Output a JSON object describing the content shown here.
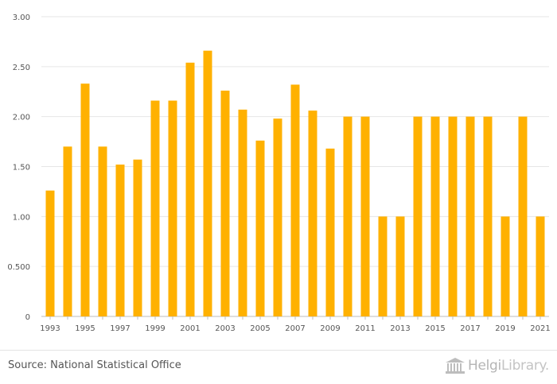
{
  "chart_data": {
    "type": "bar",
    "categories": [
      "1993",
      "1994",
      "1995",
      "1996",
      "1997",
      "1998",
      "1999",
      "2000",
      "2001",
      "2002",
      "2003",
      "2004",
      "2005",
      "2006",
      "2007",
      "2008",
      "2009",
      "2010",
      "2011",
      "2012",
      "2013",
      "2014",
      "2015",
      "2016",
      "2017",
      "2018",
      "2019",
      "2020",
      "2021"
    ],
    "x_tick_labels": [
      "1993",
      "1995",
      "1997",
      "1999",
      "2001",
      "2003",
      "2005",
      "2007",
      "2009",
      "2011",
      "2013",
      "2015",
      "2017",
      "2019",
      "2021"
    ],
    "values": [
      1.26,
      1.7,
      2.33,
      1.7,
      1.52,
      1.57,
      2.16,
      2.16,
      2.54,
      2.66,
      2.26,
      2.07,
      1.76,
      1.98,
      2.32,
      2.06,
      1.68,
      2.0,
      2.0,
      1.0,
      1.0,
      2.0,
      2.0,
      2.0,
      2.0,
      2.0,
      1.0,
      2.0,
      1.0
    ],
    "y_ticks": [
      0,
      0.5,
      1.0,
      1.5,
      2.0,
      2.5,
      3.0
    ],
    "y_tick_labels": [
      "0",
      "0.500",
      "1.00",
      "1.50",
      "2.00",
      "2.50",
      "3.00"
    ],
    "ylim": [
      0,
      3.0
    ],
    "title": "",
    "xlabel": "",
    "ylabel": "",
    "grid": true,
    "bar_color": "#ffb100"
  },
  "footer": {
    "source": "Source: National Statistical Office",
    "brand_main": "Helgi",
    "brand_light": "Library."
  }
}
